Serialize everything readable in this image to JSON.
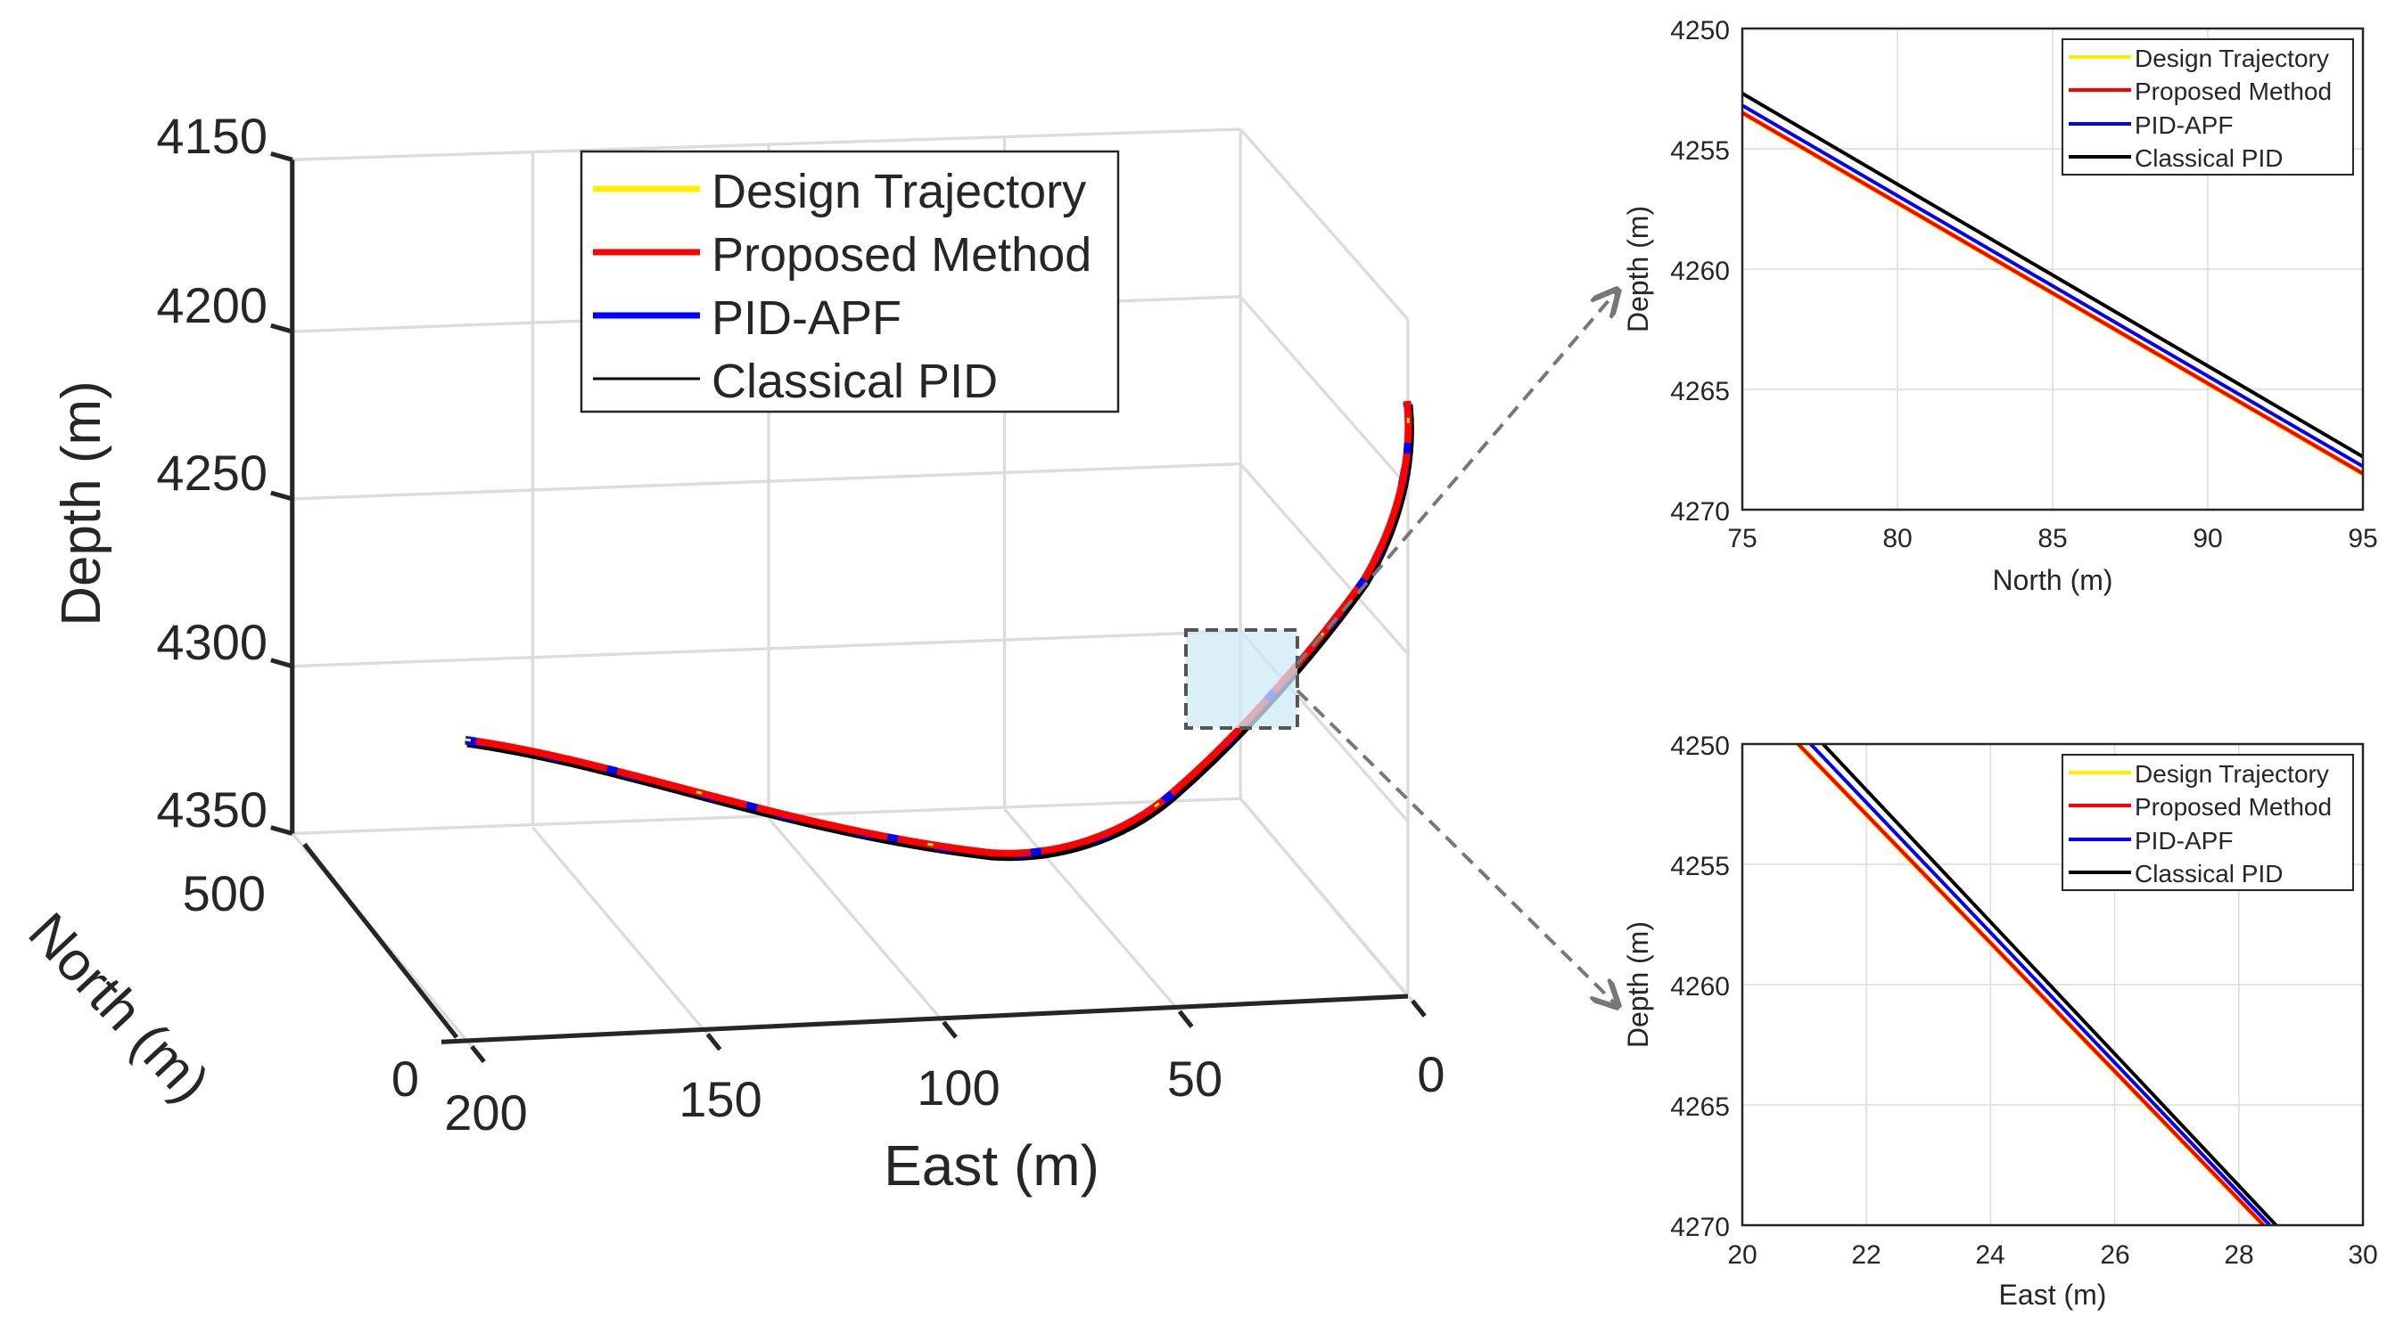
{
  "colors": {
    "design": "#ffee00",
    "proposed": "#ff0000",
    "pid_apf": "#0000ff",
    "classical": "#000000",
    "grid": "#dcdcdc",
    "axis": "#262626",
    "zoom_box_fill": "#cfe9f7",
    "zoom_box_stroke": "#555555",
    "arrow": "#777777"
  },
  "chart_data": [
    {
      "id": "main3d",
      "type": "line",
      "projection": "3d",
      "xlabel": "East (m)",
      "ylabel": "North (m)",
      "zlabel": "Depth (m)",
      "east_ticks": [
        "200",
        "150",
        "100",
        "50",
        "0"
      ],
      "north_ticks": [
        "500",
        "0"
      ],
      "depth_ticks": [
        "4150",
        "4200",
        "4250",
        "4300",
        "4350"
      ],
      "xlim": [
        0,
        200
      ],
      "ylim": [
        0,
        500
      ],
      "zlim": [
        4150,
        4350
      ],
      "legend": {
        "position": "top-center",
        "entries": [
          "Design Trajectory",
          "Proposed Method",
          "PID-APF",
          "Classical PID"
        ]
      },
      "zoom_box": true
    },
    {
      "id": "zoom_north",
      "type": "line",
      "xlabel": "North (m)",
      "ylabel": "Depth (m)",
      "xlim": [
        75,
        95
      ],
      "ylim": [
        4250,
        4270
      ],
      "y_reversed": true,
      "x_ticks": [
        "75",
        "80",
        "85",
        "90",
        "95"
      ],
      "y_ticks": [
        "4250",
        "4255",
        "4260",
        "4265",
        "4270"
      ],
      "legend": {
        "position": "top-right",
        "entries": [
          "Design Trajectory",
          "Proposed Method",
          "PID-APF",
          "Classical PID"
        ]
      },
      "series": [
        {
          "name": "Design Trajectory",
          "x": [
            75,
            95
          ],
          "y": [
            4253.5,
            4268.5
          ]
        },
        {
          "name": "Proposed Method",
          "x": [
            75,
            95
          ],
          "y": [
            4253.5,
            4268.5
          ]
        },
        {
          "name": "PID-APF",
          "x": [
            75,
            95
          ],
          "y": [
            4253.2,
            4268.2
          ]
        },
        {
          "name": "Classical PID",
          "x": [
            75,
            95
          ],
          "y": [
            4252.7,
            4267.8
          ]
        }
      ]
    },
    {
      "id": "zoom_east",
      "type": "line",
      "xlabel": "East (m)",
      "ylabel": "Depth (m)",
      "xlim": [
        20,
        30
      ],
      "ylim": [
        4250,
        4270
      ],
      "y_reversed": true,
      "x_ticks": [
        "20",
        "22",
        "24",
        "26",
        "28",
        "30"
      ],
      "y_ticks": [
        "4250",
        "4255",
        "4260",
        "4265",
        "4270"
      ],
      "legend": {
        "position": "top-right",
        "entries": [
          "Design Trajectory",
          "Proposed Method",
          "PID-APF",
          "Classical PID"
        ]
      },
      "series": [
        {
          "name": "Design Trajectory",
          "x": [
            20.9,
            28.4
          ],
          "y": [
            4250,
            4270
          ]
        },
        {
          "name": "Proposed Method",
          "x": [
            20.9,
            28.4
          ],
          "y": [
            4250,
            4270
          ]
        },
        {
          "name": "PID-APF",
          "x": [
            21.1,
            28.5
          ],
          "y": [
            4250,
            4270
          ]
        },
        {
          "name": "Classical PID",
          "x": [
            21.3,
            28.6
          ],
          "y": [
            4250,
            4270
          ]
        }
      ]
    }
  ]
}
